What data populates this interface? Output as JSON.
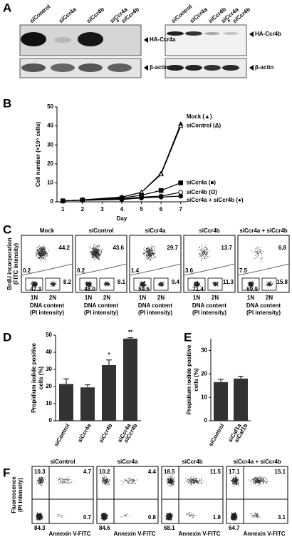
{
  "panels": {
    "a": "A",
    "b": "B",
    "c": "C",
    "d": "D",
    "e": "E",
    "f": "F"
  },
  "western": [
    {
      "lanes": [
        "siControl",
        "siCcr4a",
        "siCcr4b",
        [
          "siCcr4a",
          "+",
          "siCcr4b"
        ]
      ],
      "bands": [
        "HA-Ccr4a",
        "β-actin"
      ]
    },
    {
      "lanes": [
        "siControl",
        "siCcr4a",
        "siCcr4b",
        [
          "siCcr4a",
          "+",
          "siCcr4b"
        ]
      ],
      "bands": [
        "HA-Ccr4b",
        "β-actin"
      ]
    }
  ],
  "chart_data": [
    {
      "type": "line",
      "x_label": "Day",
      "y_label": "Cell number (×10⁴ cells)",
      "x": [
        1,
        2,
        4,
        5,
        6,
        7
      ],
      "xlim": [
        0.7,
        7.3
      ],
      "xticks": [
        1,
        2,
        3,
        4,
        5,
        6,
        7
      ],
      "ylim": [
        0,
        50
      ],
      "yticks": [
        0,
        10,
        20,
        30,
        40,
        50
      ],
      "series": [
        {
          "name": "Mock (▲)",
          "color": "#000000",
          "marker": "triangle",
          "values": [
            0.5,
            1,
            2.5,
            5,
            15,
            41
          ]
        },
        {
          "name": "siControl (Δ)",
          "color": "#000000",
          "marker": "triangle-open",
          "values": [
            0.5,
            1,
            2.5,
            5,
            14.5,
            40
          ]
        },
        {
          "name": "siCcr4a (■)",
          "color": "#000000",
          "marker": "square",
          "values": [
            0.5,
            1,
            2,
            3.5,
            6,
            10
          ]
        },
        {
          "name": "siCcr4b (O)",
          "color": "#000000",
          "marker": "circle-open",
          "values": [
            0.5,
            1,
            1.5,
            2.5,
            3,
            5
          ]
        },
        {
          "name": "siCcr4a + siCcr4b (●)",
          "color": "#000000",
          "marker": "circle",
          "values": [
            0.5,
            0.8,
            1.2,
            2,
            2.5,
            3
          ]
        }
      ]
    },
    {
      "type": "bar",
      "y_label": [
        "Propidium iodide positive",
        "cells (%)"
      ],
      "categories": [
        "siControl",
        "siCcr4a",
        "siCcr4b",
        [
          "siCcr4a",
          "siCcr4b"
        ]
      ],
      "values": [
        21.5,
        19.5,
        32.5,
        48
      ],
      "errors": [
        3,
        1.5,
        3,
        0.5
      ],
      "significance": [
        null,
        null,
        "*",
        "**"
      ],
      "color": "#333333",
      "ylim": [
        0,
        50
      ],
      "yticks": [
        0,
        10,
        20,
        30,
        40,
        50
      ]
    },
    {
      "type": "bar",
      "y_label": [
        "Propidium iodide positive",
        "cells (%)"
      ],
      "categories": [
        "siControl",
        [
          "siCaf1a",
          "siCaf1b"
        ]
      ],
      "values": [
        16.5,
        18
      ],
      "errors": [
        1.2,
        1
      ],
      "color": "#333333",
      "ylim": [
        0,
        35
      ],
      "yticks": [
        0,
        10,
        20,
        30
      ]
    }
  ],
  "cell_cycle": {
    "y_label": [
      "BrdU incorporation",
      "(FITC intensity)"
    ],
    "x_ticks": [
      "1N",
      "2N"
    ],
    "x_label": [
      "DNA content",
      "(PI intensity)"
    ],
    "plots": [
      {
        "title": "Mock",
        "top": "44.2",
        "left": "0.2",
        "g1": "47.3",
        "g2": "8.2"
      },
      {
        "title": "siControl",
        "top": "43.6",
        "left": "0.2",
        "g1": "48.0",
        "g2": "8.1"
      },
      {
        "title": "siCcr4a",
        "top": "29.7",
        "left": "1.4",
        "g1": "59.5",
        "g2": "9.4"
      },
      {
        "title": "siCcr4b",
        "top": "13.7",
        "left": "3.6",
        "g1": "71.4",
        "g2": "11.3"
      },
      {
        "title": "siCcr4a + siCcr4b",
        "top": "6.8",
        "left": "7.5",
        "g1": "69.9",
        "g2": "15.8"
      }
    ]
  },
  "apoptosis": {
    "y_label": [
      "Fluorescence",
      "(PI intensity)"
    ],
    "x_label": "Annexin V-FITC",
    "plots": [
      {
        "title": "siControl",
        "ul": "10.3",
        "ur": "4.7",
        "ll": "84.3",
        "lr": "0.7"
      },
      {
        "title": "siCcr4a",
        "ul": "10.2",
        "ur": "4.4",
        "ll": "84.6",
        "lr": "0.8"
      },
      {
        "title": "siCcr4b",
        "ul": "18.5",
        "ur": "11.5",
        "ll": "68.1",
        "lr": "1.8"
      },
      {
        "title": "siCcr4a + siCcr4b",
        "ul": "17.1",
        "ur": "15.1",
        "ll": "64.7",
        "lr": "3.1"
      }
    ]
  }
}
